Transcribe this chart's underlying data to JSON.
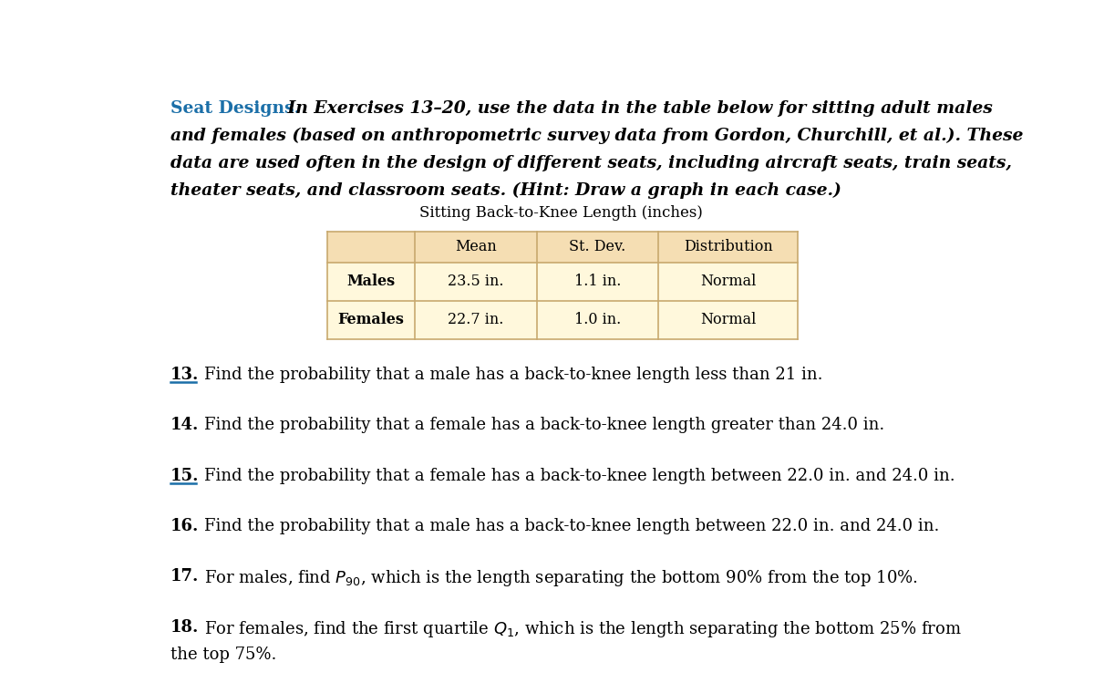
{
  "title_bold": "Seat Designs.",
  "para_lines": [
    "   In Exercises 13–20, use the data in the table below for sitting adult males",
    "and females (based on anthropometric survey data from Gordon, Churchill, et al.). These",
    "data are used often in the design of different seats, including aircraft seats, train seats,",
    "theater seats, and classroom seats. (Hint: Draw a graph in each case.)"
  ],
  "table_title": "Sitting Back-to-Knee Length (inches)",
  "table_headers": [
    "",
    "Mean",
    "St. Dev.",
    "Distribution"
  ],
  "table_rows": [
    [
      "Males",
      "23.5 in.",
      "1.1 in.",
      "Normal"
    ],
    [
      "Females",
      "22.7 in.",
      "1.0 in.",
      "Normal"
    ]
  ],
  "table_header_bg": "#F5DEB3",
  "table_row_bg": "#FFF8DC",
  "table_border_color": "#C8A96E",
  "questions": [
    {
      "num": "13.",
      "underline": true,
      "text": "Find the probability that a male has a back-to-knee length less than 21 in."
    },
    {
      "num": "14.",
      "underline": false,
      "text": "Find the probability that a female has a back-to-knee length greater than 24.0 in."
    },
    {
      "num": "15.",
      "underline": true,
      "text": "Find the probability that a female has a back-to-knee length between 22.0 in. and 24.0 in."
    },
    {
      "num": "16.",
      "underline": false,
      "text": "Find the probability that a male has a back-to-knee length between 22.0 in. and 24.0 in."
    },
    {
      "num": "17.",
      "underline": false,
      "text": "For males, find $P_{90}$, which is the length separating the bottom 90% from the top 10%."
    },
    {
      "num": "18.",
      "underline": true,
      "line1": "For females, find the first quartile $Q_1$, which is the length separating the bottom 25% from",
      "line2": "the top 75%."
    }
  ],
  "title_color": "#1B6FA8",
  "bg_color": "#FFFFFF",
  "font_size_title": 13.5,
  "font_size_questions": 13.0
}
